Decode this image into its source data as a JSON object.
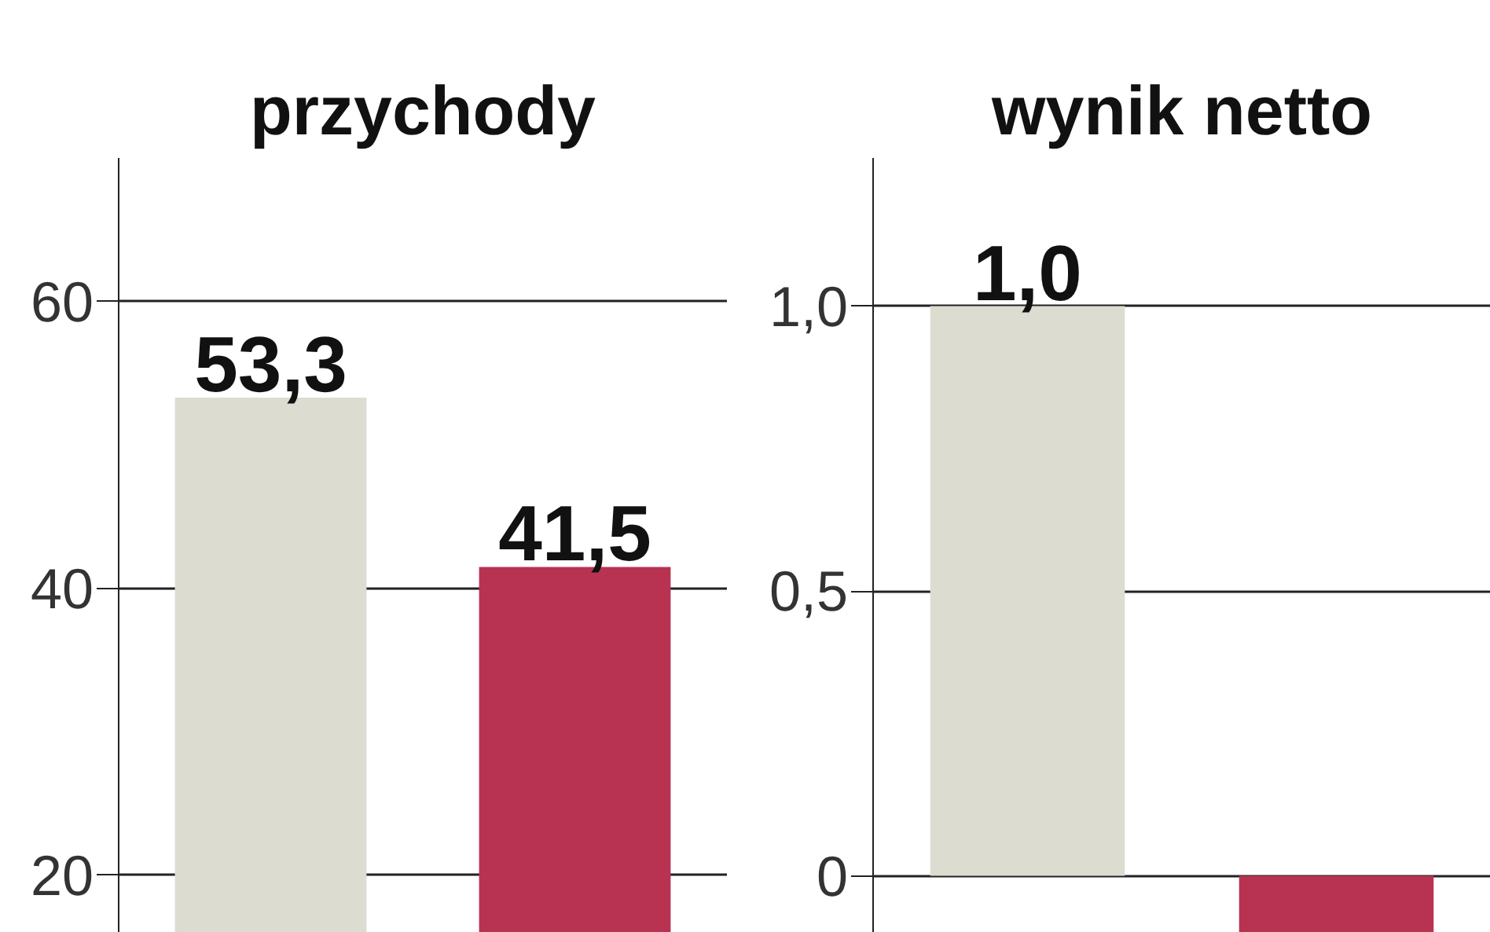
{
  "chart_data": [
    {
      "type": "bar",
      "title": "przychody",
      "categories": [
        null,
        null
      ],
      "values": [
        53.3,
        41.5
      ],
      "colors": [
        "#dcdcd0",
        "#b83352"
      ],
      "value_labels": [
        "53,3",
        "41,5"
      ],
      "ylim": [
        16,
        70
      ],
      "yticks": [
        20,
        40,
        60
      ],
      "grid": "y",
      "tick_labels": "y"
    },
    {
      "type": "bar",
      "title": "wynik netto",
      "categories": [
        null,
        null
      ],
      "values": [
        1.0,
        -0.1
      ],
      "colors": [
        "#dcdcd0",
        "#b83352"
      ],
      "value_labels": [
        "1,0",
        null
      ],
      "ylim": [
        -0.1,
        1.26
      ],
      "yticks": [
        {
          "value": 0,
          "label": "0"
        },
        {
          "value": 0.5,
          "label": "0,5"
        },
        {
          "value": 1.0,
          "label": "1,0"
        }
      ],
      "grid": "y",
      "tick_labels": "y"
    }
  ]
}
